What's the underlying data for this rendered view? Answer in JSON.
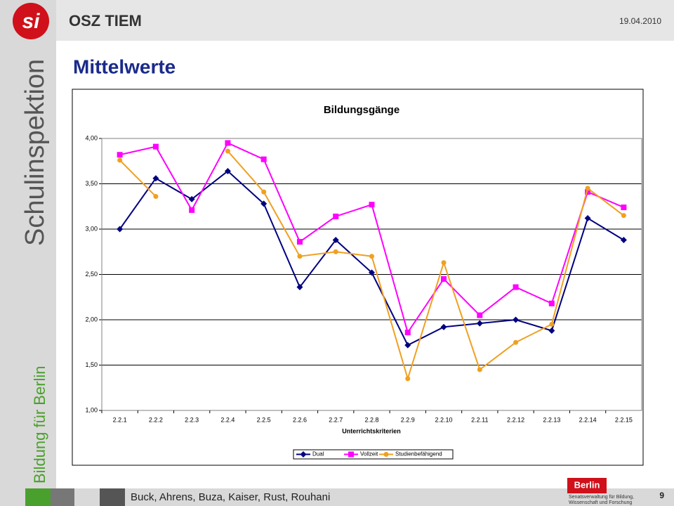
{
  "slide": {
    "logo": "si",
    "header": "OSZ TIEM",
    "date": "19.04.2010",
    "side_title": "Schulinspektion",
    "side_subtitle": "Bildung für Berlin",
    "heading": "Mittelwerte",
    "authors": "Buck, Ahrens, Buza, Kaiser, Rust, Rouhani",
    "page": "9",
    "berlin_logo": "Berlin",
    "berlin_dept_1": "Senatsverwaltung für Bildung,",
    "berlin_dept_2": "Wissenschaft und Forschung"
  },
  "chart_data": {
    "type": "line",
    "title": "Bildungsgänge",
    "x_label": "Unterrichtskriterien",
    "categories": [
      "2.2.1",
      "2.2.2",
      "2.2.3",
      "2.2.4",
      "2.2.5",
      "2.2.6",
      "2.2.7",
      "2.2.8",
      "2.2.9",
      "2.2.10",
      "2.2.11",
      "2.2.12",
      "2.2.13",
      "2.2.14",
      "2.2.15"
    ],
    "series": [
      {
        "name": "Dual",
        "color": "#000080",
        "marker": "diamond",
        "values": [
          3.0,
          3.56,
          3.33,
          3.64,
          3.28,
          2.36,
          2.88,
          2.52,
          1.72,
          1.92,
          1.96,
          2.0,
          1.88,
          3.12,
          2.88
        ]
      },
      {
        "name": "Vollzeit",
        "color": "#ff00ff",
        "marker": "square",
        "values": [
          3.82,
          3.91,
          3.21,
          3.95,
          3.77,
          2.86,
          3.14,
          3.27,
          1.86,
          2.45,
          2.05,
          2.36,
          2.18,
          3.41,
          3.24
        ]
      },
      {
        "name": "Studienbefähigend",
        "color": "#f0a020",
        "marker": "circle",
        "values": [
          3.76,
          3.36,
          null,
          3.86,
          3.41,
          2.7,
          2.75,
          2.7,
          1.35,
          2.63,
          1.45,
          1.75,
          1.95,
          3.45,
          3.15
        ]
      }
    ],
    "ylim": [
      1,
      4
    ],
    "yticks": [
      {
        "value": 1,
        "label": "1,00"
      },
      {
        "value": 1.5,
        "label": "1,50"
      },
      {
        "value": 2,
        "label": "2,00"
      },
      {
        "value": 2.5,
        "label": "2,50"
      },
      {
        "value": 3,
        "label": "3,00"
      },
      {
        "value": 3.5,
        "label": "3,50"
      },
      {
        "value": 4,
        "label": "4,00"
      }
    ],
    "grid": true,
    "legend": "bottom"
  }
}
